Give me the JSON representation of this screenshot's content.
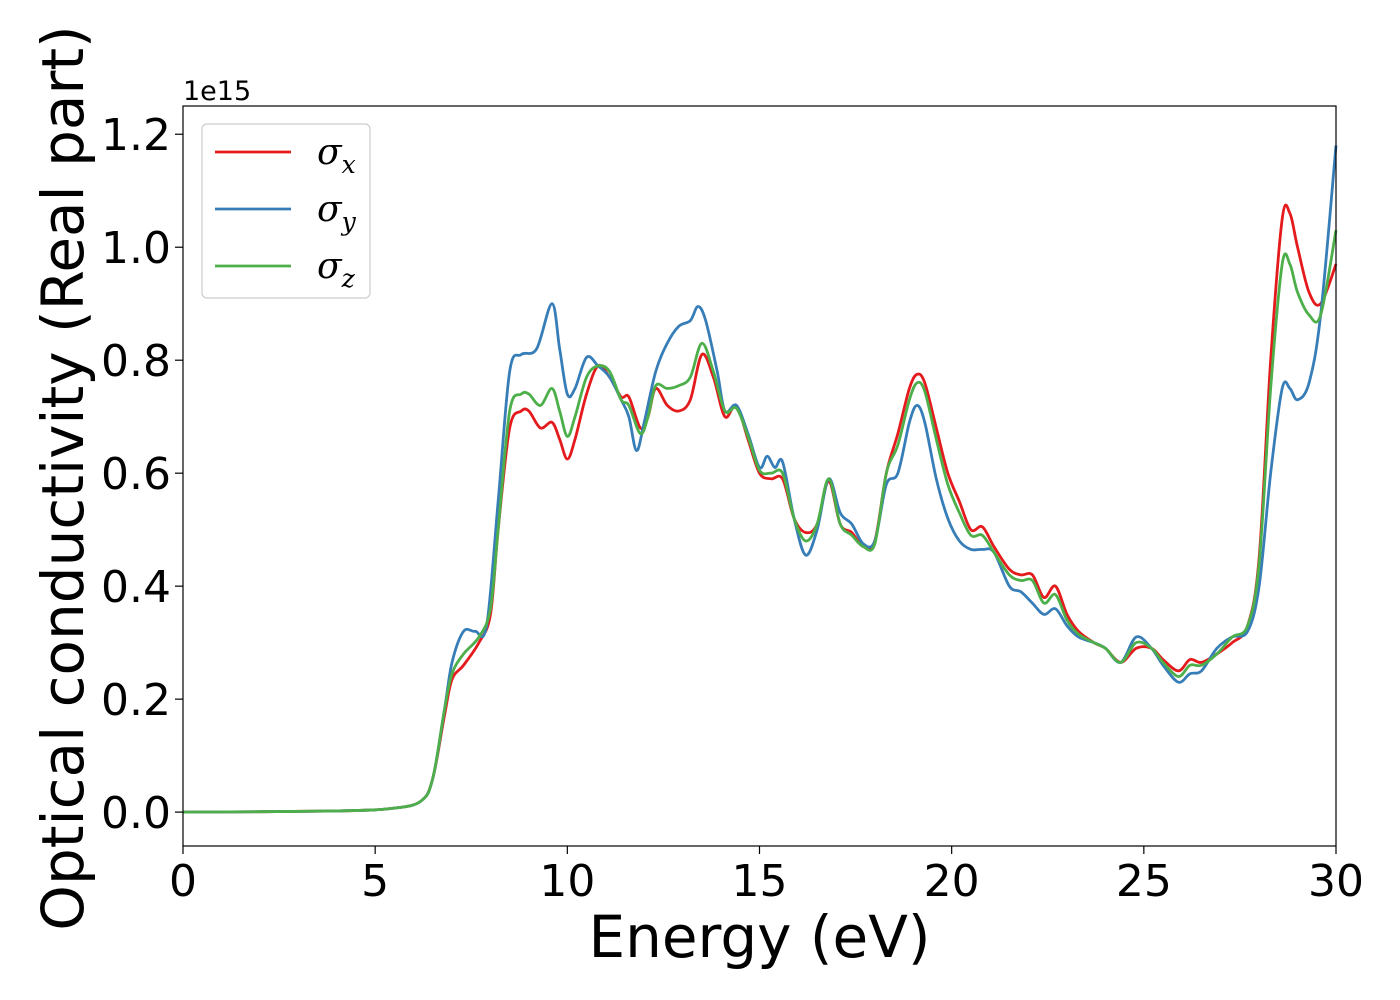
{
  "chart_data": {
    "type": "line",
    "title": "",
    "xlabel": "Energy (eV)",
    "ylabel": "Optical conductivity (Real part)",
    "y_offset_text": "1e15",
    "xlim": [
      0,
      30
    ],
    "ylim": [
      -0.06,
      1.25
    ],
    "xticks": [
      0,
      5,
      10,
      15,
      20,
      25,
      30
    ],
    "xtick_labels": [
      "0",
      "5",
      "10",
      "15",
      "20",
      "25",
      "30"
    ],
    "yticks": [
      0.0,
      0.2,
      0.4,
      0.6,
      0.8,
      1.0,
      1.2
    ],
    "ytick_labels": [
      "0.0",
      "0.2",
      "0.4",
      "0.6",
      "0.8",
      "1.0",
      "1.2"
    ],
    "grid": false,
    "legend_position": "top-left",
    "series": [
      {
        "name": "σ_x",
        "label_base": "σ",
        "label_sub": "x",
        "color": "#e41a1c",
        "points": [
          [
            0,
            0
          ],
          [
            4,
            0.002
          ],
          [
            5.5,
            0.007
          ],
          [
            6.2,
            0.02
          ],
          [
            6.5,
            0.06
          ],
          [
            6.8,
            0.17
          ],
          [
            7.0,
            0.235
          ],
          [
            7.3,
            0.26
          ],
          [
            7.7,
            0.3
          ],
          [
            8.0,
            0.35
          ],
          [
            8.2,
            0.5
          ],
          [
            8.5,
            0.68
          ],
          [
            8.8,
            0.71
          ],
          [
            9.0,
            0.71
          ],
          [
            9.3,
            0.68
          ],
          [
            9.6,
            0.69
          ],
          [
            9.8,
            0.66
          ],
          [
            10.0,
            0.625
          ],
          [
            10.2,
            0.66
          ],
          [
            10.5,
            0.74
          ],
          [
            10.8,
            0.79
          ],
          [
            11.1,
            0.77
          ],
          [
            11.4,
            0.735
          ],
          [
            11.6,
            0.735
          ],
          [
            11.9,
            0.68
          ],
          [
            12.1,
            0.7
          ],
          [
            12.3,
            0.75
          ],
          [
            12.6,
            0.72
          ],
          [
            12.9,
            0.71
          ],
          [
            13.2,
            0.73
          ],
          [
            13.5,
            0.81
          ],
          [
            13.8,
            0.77
          ],
          [
            14.1,
            0.7
          ],
          [
            14.4,
            0.72
          ],
          [
            14.7,
            0.66
          ],
          [
            15.0,
            0.6
          ],
          [
            15.3,
            0.59
          ],
          [
            15.6,
            0.59
          ],
          [
            15.9,
            0.52
          ],
          [
            16.2,
            0.495
          ],
          [
            16.5,
            0.51
          ],
          [
            16.8,
            0.585
          ],
          [
            17.1,
            0.51
          ],
          [
            17.4,
            0.495
          ],
          [
            17.7,
            0.47
          ],
          [
            18.0,
            0.48
          ],
          [
            18.3,
            0.6
          ],
          [
            18.6,
            0.67
          ],
          [
            18.9,
            0.75
          ],
          [
            19.1,
            0.775
          ],
          [
            19.3,
            0.76
          ],
          [
            19.6,
            0.68
          ],
          [
            19.9,
            0.6
          ],
          [
            20.2,
            0.55
          ],
          [
            20.5,
            0.5
          ],
          [
            20.8,
            0.505
          ],
          [
            21.1,
            0.47
          ],
          [
            21.5,
            0.43
          ],
          [
            21.8,
            0.42
          ],
          [
            22.1,
            0.42
          ],
          [
            22.4,
            0.38
          ],
          [
            22.7,
            0.4
          ],
          [
            23.0,
            0.35
          ],
          [
            23.3,
            0.32
          ],
          [
            23.7,
            0.3
          ],
          [
            24.0,
            0.29
          ],
          [
            24.4,
            0.265
          ],
          [
            24.8,
            0.29
          ],
          [
            25.2,
            0.29
          ],
          [
            25.5,
            0.27
          ],
          [
            25.9,
            0.25
          ],
          [
            26.2,
            0.27
          ],
          [
            26.5,
            0.265
          ],
          [
            26.9,
            0.28
          ],
          [
            27.3,
            0.3
          ],
          [
            27.7,
            0.33
          ],
          [
            28.0,
            0.45
          ],
          [
            28.3,
            0.8
          ],
          [
            28.6,
            1.05
          ],
          [
            28.8,
            1.06
          ],
          [
            29.0,
            1.0
          ],
          [
            29.3,
            0.92
          ],
          [
            29.6,
            0.9
          ],
          [
            30.0,
            0.97
          ]
        ]
      },
      {
        "name": "σ_y",
        "label_base": "σ",
        "label_sub": "y",
        "color": "#377eb8",
        "points": [
          [
            0,
            0
          ],
          [
            4,
            0.002
          ],
          [
            5.5,
            0.007
          ],
          [
            6.2,
            0.02
          ],
          [
            6.5,
            0.06
          ],
          [
            6.8,
            0.18
          ],
          [
            7.0,
            0.265
          ],
          [
            7.3,
            0.32
          ],
          [
            7.6,
            0.32
          ],
          [
            7.9,
            0.33
          ],
          [
            8.2,
            0.55
          ],
          [
            8.5,
            0.78
          ],
          [
            8.8,
            0.81
          ],
          [
            9.2,
            0.82
          ],
          [
            9.6,
            0.9
          ],
          [
            9.8,
            0.82
          ],
          [
            10.0,
            0.74
          ],
          [
            10.2,
            0.75
          ],
          [
            10.5,
            0.805
          ],
          [
            10.8,
            0.79
          ],
          [
            11.1,
            0.77
          ],
          [
            11.4,
            0.73
          ],
          [
            11.6,
            0.7
          ],
          [
            11.8,
            0.64
          ],
          [
            12.0,
            0.69
          ],
          [
            12.3,
            0.78
          ],
          [
            12.6,
            0.83
          ],
          [
            12.9,
            0.86
          ],
          [
            13.2,
            0.87
          ],
          [
            13.4,
            0.895
          ],
          [
            13.6,
            0.87
          ],
          [
            13.9,
            0.78
          ],
          [
            14.1,
            0.71
          ],
          [
            14.4,
            0.72
          ],
          [
            14.7,
            0.67
          ],
          [
            15.0,
            0.61
          ],
          [
            15.2,
            0.63
          ],
          [
            15.4,
            0.61
          ],
          [
            15.6,
            0.62
          ],
          [
            15.9,
            0.52
          ],
          [
            16.2,
            0.455
          ],
          [
            16.5,
            0.5
          ],
          [
            16.8,
            0.59
          ],
          [
            17.1,
            0.53
          ],
          [
            17.4,
            0.51
          ],
          [
            17.7,
            0.475
          ],
          [
            18.0,
            0.48
          ],
          [
            18.3,
            0.58
          ],
          [
            18.6,
            0.6
          ],
          [
            18.9,
            0.69
          ],
          [
            19.1,
            0.72
          ],
          [
            19.3,
            0.69
          ],
          [
            19.6,
            0.59
          ],
          [
            19.9,
            0.52
          ],
          [
            20.2,
            0.48
          ],
          [
            20.5,
            0.465
          ],
          [
            20.8,
            0.465
          ],
          [
            21.1,
            0.46
          ],
          [
            21.5,
            0.4
          ],
          [
            21.8,
            0.39
          ],
          [
            22.1,
            0.37
          ],
          [
            22.4,
            0.35
          ],
          [
            22.7,
            0.36
          ],
          [
            23.0,
            0.33
          ],
          [
            23.3,
            0.31
          ],
          [
            23.7,
            0.3
          ],
          [
            24.0,
            0.29
          ],
          [
            24.4,
            0.265
          ],
          [
            24.8,
            0.31
          ],
          [
            25.2,
            0.29
          ],
          [
            25.5,
            0.26
          ],
          [
            25.9,
            0.23
          ],
          [
            26.2,
            0.245
          ],
          [
            26.5,
            0.25
          ],
          [
            26.9,
            0.29
          ],
          [
            27.3,
            0.31
          ],
          [
            27.7,
            0.32
          ],
          [
            28.0,
            0.4
          ],
          [
            28.3,
            0.6
          ],
          [
            28.6,
            0.75
          ],
          [
            28.8,
            0.75
          ],
          [
            29.0,
            0.73
          ],
          [
            29.3,
            0.76
          ],
          [
            29.6,
            0.88
          ],
          [
            30.0,
            1.18
          ]
        ]
      },
      {
        "name": "σ_z",
        "label_base": "σ",
        "label_sub": "z",
        "color": "#4daf4a",
        "points": [
          [
            0,
            0
          ],
          [
            4,
            0.002
          ],
          [
            5.5,
            0.007
          ],
          [
            6.2,
            0.02
          ],
          [
            6.5,
            0.06
          ],
          [
            6.8,
            0.18
          ],
          [
            7.0,
            0.245
          ],
          [
            7.3,
            0.28
          ],
          [
            7.7,
            0.31
          ],
          [
            8.0,
            0.36
          ],
          [
            8.2,
            0.5
          ],
          [
            8.5,
            0.71
          ],
          [
            8.8,
            0.74
          ],
          [
            9.0,
            0.74
          ],
          [
            9.3,
            0.72
          ],
          [
            9.6,
            0.75
          ],
          [
            9.8,
            0.71
          ],
          [
            10.0,
            0.665
          ],
          [
            10.2,
            0.7
          ],
          [
            10.5,
            0.77
          ],
          [
            10.8,
            0.79
          ],
          [
            11.1,
            0.78
          ],
          [
            11.4,
            0.73
          ],
          [
            11.6,
            0.72
          ],
          [
            11.9,
            0.67
          ],
          [
            12.1,
            0.7
          ],
          [
            12.3,
            0.755
          ],
          [
            12.6,
            0.75
          ],
          [
            12.9,
            0.755
          ],
          [
            13.2,
            0.77
          ],
          [
            13.5,
            0.83
          ],
          [
            13.8,
            0.78
          ],
          [
            14.1,
            0.71
          ],
          [
            14.4,
            0.715
          ],
          [
            14.7,
            0.665
          ],
          [
            15.0,
            0.605
          ],
          [
            15.3,
            0.6
          ],
          [
            15.6,
            0.6
          ],
          [
            15.9,
            0.52
          ],
          [
            16.2,
            0.48
          ],
          [
            16.5,
            0.51
          ],
          [
            16.8,
            0.59
          ],
          [
            17.1,
            0.51
          ],
          [
            17.4,
            0.49
          ],
          [
            17.7,
            0.47
          ],
          [
            18.0,
            0.475
          ],
          [
            18.3,
            0.6
          ],
          [
            18.6,
            0.65
          ],
          [
            18.9,
            0.73
          ],
          [
            19.1,
            0.76
          ],
          [
            19.3,
            0.745
          ],
          [
            19.6,
            0.66
          ],
          [
            19.9,
            0.58
          ],
          [
            20.2,
            0.53
          ],
          [
            20.5,
            0.49
          ],
          [
            20.8,
            0.49
          ],
          [
            21.1,
            0.46
          ],
          [
            21.5,
            0.42
          ],
          [
            21.8,
            0.41
          ],
          [
            22.1,
            0.41
          ],
          [
            22.4,
            0.37
          ],
          [
            22.7,
            0.385
          ],
          [
            23.0,
            0.34
          ],
          [
            23.3,
            0.315
          ],
          [
            23.7,
            0.3
          ],
          [
            24.0,
            0.29
          ],
          [
            24.4,
            0.265
          ],
          [
            24.8,
            0.3
          ],
          [
            25.2,
            0.29
          ],
          [
            25.5,
            0.265
          ],
          [
            25.9,
            0.24
          ],
          [
            26.2,
            0.26
          ],
          [
            26.5,
            0.26
          ],
          [
            26.9,
            0.28
          ],
          [
            27.3,
            0.31
          ],
          [
            27.7,
            0.33
          ],
          [
            28.0,
            0.44
          ],
          [
            28.3,
            0.75
          ],
          [
            28.6,
            0.97
          ],
          [
            28.8,
            0.97
          ],
          [
            29.0,
            0.92
          ],
          [
            29.3,
            0.88
          ],
          [
            29.6,
            0.88
          ],
          [
            30.0,
            1.03
          ]
        ]
      }
    ]
  }
}
